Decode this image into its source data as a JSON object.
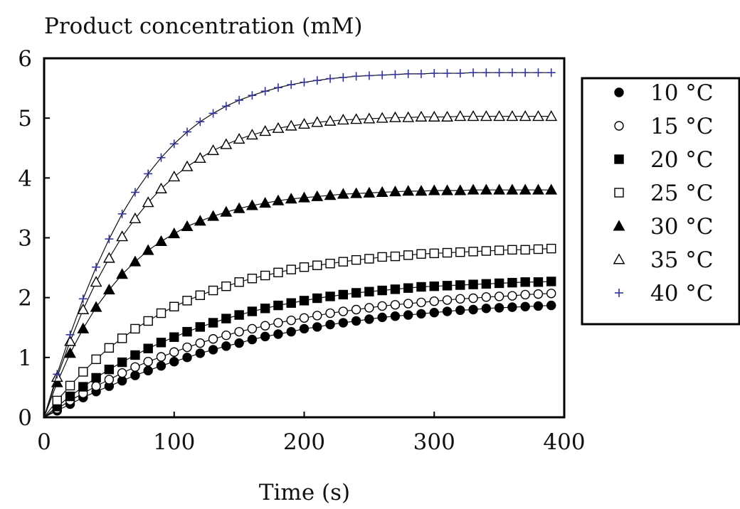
{
  "chart_data": {
    "type": "scatter",
    "title": "",
    "ylabel": "Product concentration (mM)",
    "xlabel": "Time (s)",
    "xlim": [
      0,
      400
    ],
    "ylim": [
      0,
      6
    ],
    "xticks": [
      0,
      100,
      200,
      300,
      400
    ],
    "yticks": [
      0,
      1,
      2,
      3,
      4,
      5,
      6
    ],
    "grid": false,
    "legend_position": "right",
    "x": [
      0,
      10,
      20,
      30,
      40,
      50,
      60,
      70,
      80,
      90,
      100,
      110,
      120,
      130,
      140,
      150,
      160,
      170,
      180,
      190,
      200,
      210,
      220,
      230,
      240,
      250,
      260,
      270,
      280,
      290,
      300,
      310,
      320,
      330,
      340,
      350,
      360,
      370,
      380,
      390
    ],
    "series": [
      {
        "name": "10 °C",
        "marker": "filled-circle",
        "color": "#000000",
        "values": [
          0,
          0.11,
          0.22,
          0.33,
          0.43,
          0.52,
          0.61,
          0.7,
          0.78,
          0.86,
          0.93,
          1.0,
          1.07,
          1.13,
          1.19,
          1.24,
          1.3,
          1.35,
          1.39,
          1.43,
          1.48,
          1.51,
          1.55,
          1.58,
          1.61,
          1.64,
          1.67,
          1.69,
          1.71,
          1.73,
          1.75,
          1.77,
          1.79,
          1.8,
          1.82,
          1.83,
          1.84,
          1.85,
          1.86,
          1.87
        ]
      },
      {
        "name": "15 °C",
        "marker": "open-circle",
        "color": "#000000",
        "values": [
          0,
          0.14,
          0.28,
          0.4,
          0.52,
          0.63,
          0.74,
          0.84,
          0.93,
          1.01,
          1.09,
          1.17,
          1.24,
          1.31,
          1.37,
          1.43,
          1.48,
          1.53,
          1.58,
          1.62,
          1.66,
          1.7,
          1.74,
          1.77,
          1.8,
          1.83,
          1.86,
          1.88,
          1.9,
          1.92,
          1.94,
          1.96,
          1.98,
          1.99,
          2.01,
          2.02,
          2.03,
          2.05,
          2.06,
          2.07
        ]
      },
      {
        "name": "20 °C",
        "marker": "filled-square",
        "color": "#000000",
        "values": [
          0,
          0.18,
          0.35,
          0.51,
          0.66,
          0.8,
          0.92,
          1.04,
          1.15,
          1.25,
          1.34,
          1.43,
          1.51,
          1.58,
          1.65,
          1.71,
          1.77,
          1.82,
          1.87,
          1.91,
          1.95,
          1.99,
          2.02,
          2.05,
          2.08,
          2.1,
          2.12,
          2.14,
          2.16,
          2.18,
          2.19,
          2.2,
          2.21,
          2.22,
          2.23,
          2.24,
          2.25,
          2.26,
          2.26,
          2.27
        ]
      },
      {
        "name": "25 °C",
        "marker": "open-square",
        "color": "#000000",
        "values": [
          0,
          0.28,
          0.53,
          0.76,
          0.97,
          1.16,
          1.32,
          1.48,
          1.61,
          1.74,
          1.85,
          1.95,
          2.04,
          2.12,
          2.19,
          2.26,
          2.32,
          2.37,
          2.42,
          2.47,
          2.51,
          2.54,
          2.57,
          2.6,
          2.63,
          2.65,
          2.68,
          2.69,
          2.71,
          2.73,
          2.74,
          2.75,
          2.76,
          2.77,
          2.78,
          2.79,
          2.8,
          2.8,
          2.81,
          2.82
        ]
      },
      {
        "name": "30 °C",
        "marker": "filled-triangle",
        "color": "#000000",
        "values": [
          0,
          0.58,
          1.07,
          1.48,
          1.84,
          2.13,
          2.39,
          2.6,
          2.79,
          2.94,
          3.07,
          3.19,
          3.28,
          3.36,
          3.43,
          3.49,
          3.54,
          3.58,
          3.62,
          3.65,
          3.67,
          3.69,
          3.71,
          3.73,
          3.74,
          3.75,
          3.76,
          3.77,
          3.78,
          3.78,
          3.79,
          3.79,
          3.79,
          3.8,
          3.8,
          3.8,
          3.8,
          3.8,
          3.8,
          3.8
        ]
      },
      {
        "name": "35 °C",
        "marker": "open-triangle",
        "color": "#000000",
        "values": [
          0,
          0.67,
          1.27,
          1.8,
          2.26,
          2.66,
          3.02,
          3.32,
          3.59,
          3.82,
          4.02,
          4.19,
          4.33,
          4.46,
          4.56,
          4.65,
          4.72,
          4.78,
          4.83,
          4.87,
          4.9,
          4.93,
          4.95,
          4.97,
          4.98,
          4.99,
          5.0,
          5.01,
          5.01,
          5.02,
          5.02,
          5.02,
          5.03,
          5.03,
          5.03,
          5.03,
          5.03,
          5.03,
          5.03,
          5.03
        ]
      },
      {
        "name": "40 °C",
        "marker": "plus",
        "color": "#333399",
        "values": [
          0,
          0.72,
          1.38,
          1.98,
          2.51,
          2.98,
          3.4,
          3.76,
          4.07,
          4.34,
          4.57,
          4.77,
          4.94,
          5.08,
          5.2,
          5.3,
          5.38,
          5.45,
          5.51,
          5.56,
          5.6,
          5.63,
          5.66,
          5.68,
          5.7,
          5.71,
          5.72,
          5.73,
          5.74,
          5.74,
          5.75,
          5.75,
          5.75,
          5.76,
          5.76,
          5.76,
          5.76,
          5.76,
          5.76,
          5.76
        ]
      }
    ]
  }
}
